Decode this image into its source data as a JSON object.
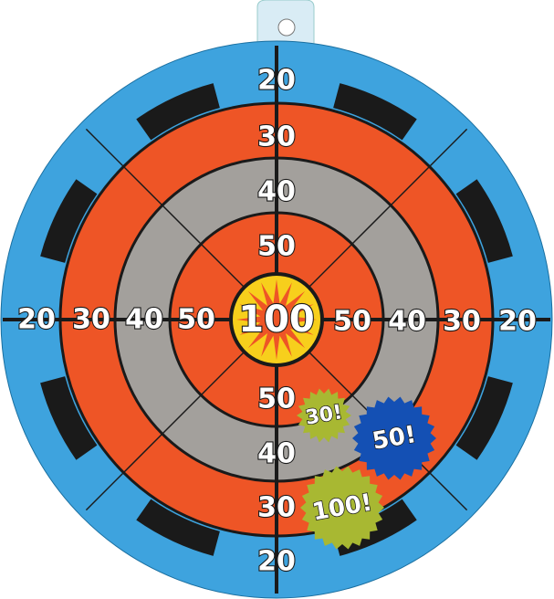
{
  "target": {
    "center_label": "100",
    "ring_labels": {
      "top": [
        "20",
        "30",
        "40",
        "50"
      ],
      "left": [
        "20",
        "30",
        "40",
        "50"
      ],
      "right": [
        "50",
        "40",
        "30",
        "20"
      ],
      "bottom": [
        "50",
        "40",
        "30",
        "20"
      ]
    },
    "badges": [
      {
        "label": "30!",
        "color": "#a8b832"
      },
      {
        "label": "50!",
        "color": "#1450b4"
      },
      {
        "label": "100!",
        "color": "#a8b832"
      }
    ],
    "colors": {
      "blue": "#3ea3de",
      "red": "#ee5526",
      "gray": "#a3a09c",
      "yellow": "#f7cf1c",
      "black": "#1a1a1a"
    }
  }
}
